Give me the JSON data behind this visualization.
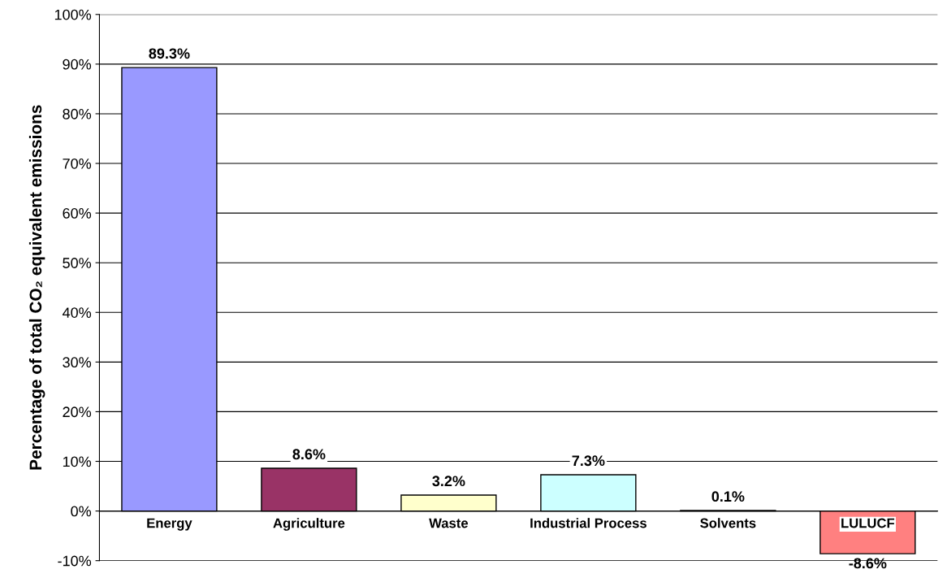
{
  "chart_data": {
    "type": "bar",
    "ylabel": "Percentage of total CO₂ equivalent emissions",
    "categories": [
      "Energy",
      "Agriculture",
      "Waste",
      "Industrial Process",
      "Solvents",
      "LULUCF"
    ],
    "values": [
      89.3,
      8.6,
      3.2,
      7.3,
      0.1,
      -8.6
    ],
    "colors": [
      "#9999ff",
      "#993366",
      "#ffffcc",
      "#ccffff",
      "#c0c0c0",
      "#ff8080"
    ],
    "value_labels": [
      "89.3%",
      "8.6%",
      "3.2%",
      "7.3%",
      "0.1%",
      "-8.6%"
    ],
    "ylim": [
      -10,
      100
    ],
    "yticks": [
      {
        "value": -10,
        "label": "-10%"
      },
      {
        "value": 0,
        "label": "0%"
      },
      {
        "value": 10,
        "label": "10%"
      },
      {
        "value": 20,
        "label": "20%"
      },
      {
        "value": 30,
        "label": "30%"
      },
      {
        "value": 40,
        "label": "40%"
      },
      {
        "value": 50,
        "label": "50%"
      },
      {
        "value": 60,
        "label": "60%"
      },
      {
        "value": 70,
        "label": "70%"
      },
      {
        "value": 80,
        "label": "80%"
      },
      {
        "value": 90,
        "label": "90%"
      },
      {
        "value": 100,
        "label": "100%"
      }
    ],
    "grid": "y",
    "legend": false
  }
}
